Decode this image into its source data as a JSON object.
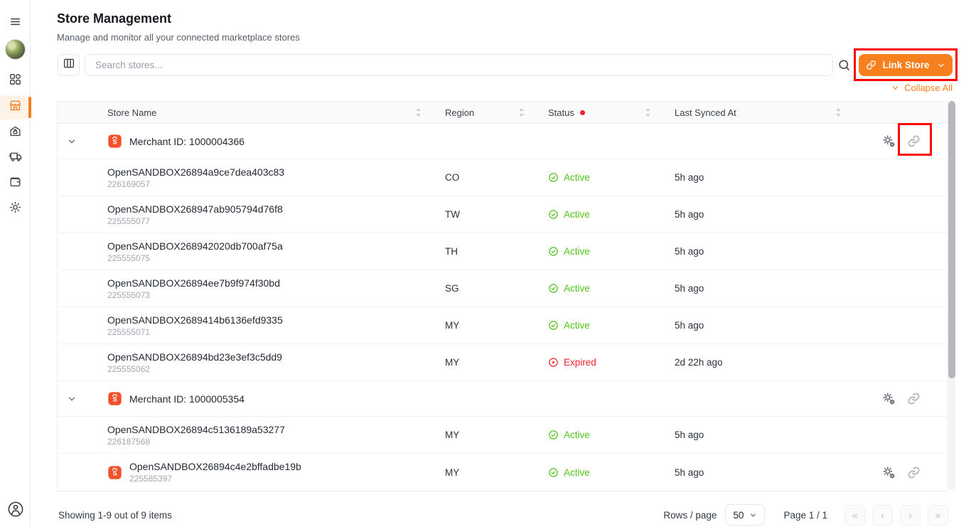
{
  "colors": {
    "accent_orange": "#f7801e",
    "shopee_orange": "#f4502a",
    "active_green": "#52c41a",
    "expired_red": "#f5222d",
    "annotation_red": "#fe0000"
  },
  "sidebar": {
    "items": [
      {
        "name": "menu",
        "icon": "hamburger-icon",
        "active": false
      },
      {
        "name": "profile",
        "icon": "avatar-photo",
        "active": false
      },
      {
        "name": "dashboard",
        "icon": "grid-icon",
        "active": false
      },
      {
        "name": "stores",
        "icon": "storefront-icon",
        "active": true
      },
      {
        "name": "warehouse",
        "icon": "home-lock-icon",
        "active": false
      },
      {
        "name": "logistics",
        "icon": "truck-icon",
        "active": false
      },
      {
        "name": "wallet",
        "icon": "wallet-icon",
        "active": false
      },
      {
        "name": "settings",
        "icon": "gear-icon",
        "active": false
      },
      {
        "name": "account",
        "icon": "person-circle-icon",
        "active": false
      }
    ]
  },
  "header": {
    "title": "Store Management",
    "subtitle": "Manage and monitor all your connected marketplace stores"
  },
  "toolbar": {
    "search_placeholder": "Search stores...",
    "link_store_label": "Link Store",
    "collapse_all_label": "Collapse All"
  },
  "table": {
    "columns": [
      {
        "label": "Store Name",
        "sortable": true
      },
      {
        "label": "Region",
        "sortable": true
      },
      {
        "label": "Status",
        "sortable": true,
        "has_red_dot": true
      },
      {
        "label": "Last Synced At",
        "sortable": true
      }
    ],
    "rows": [
      {
        "type": "group",
        "label": "Merchant ID: 1000004366",
        "actions": true,
        "annotated_unlink": true
      },
      {
        "type": "store",
        "name": "OpenSANDBOX26894a9ce7dea403c83",
        "store_id": "226169057",
        "region": "CO",
        "status": "Active",
        "last_synced": "5h ago"
      },
      {
        "type": "store",
        "name": "OpenSANDBOX268947ab905794d76f8",
        "store_id": "225555077",
        "region": "TW",
        "status": "Active",
        "last_synced": "5h ago"
      },
      {
        "type": "store",
        "name": "OpenSANDBOX268942020db700af75a",
        "store_id": "225555075",
        "region": "TH",
        "status": "Active",
        "last_synced": "5h ago"
      },
      {
        "type": "store",
        "name": "OpenSANDBOX26894ee7b9f974f30bd",
        "store_id": "225555073",
        "region": "SG",
        "status": "Active",
        "last_synced": "5h ago"
      },
      {
        "type": "store",
        "name": "OpenSANDBOX2689414b6136efd9335",
        "store_id": "225555071",
        "region": "MY",
        "status": "Active",
        "last_synced": "5h ago"
      },
      {
        "type": "store",
        "name": "OpenSANDBOX26894bd23e3ef3c5dd9",
        "store_id": "225555062",
        "region": "MY",
        "status": "Expired",
        "last_synced": "2d 22h ago"
      },
      {
        "type": "group",
        "label": "Merchant ID: 1000005354",
        "actions": true
      },
      {
        "type": "store",
        "name": "OpenSANDBOX26894c5136189a53277",
        "store_id": "226187568",
        "region": "MY",
        "status": "Active",
        "last_synced": "5h ago"
      },
      {
        "type": "store",
        "name": "OpenSANDBOX26894c4e2bffadbe19b",
        "store_id": "225585397",
        "region": "MY",
        "status": "Active",
        "last_synced": "5h ago",
        "shopee_icon": true,
        "actions": true
      }
    ]
  },
  "footer": {
    "showing": "Showing 1-9 out of 9 items",
    "rows_per_page_label": "Rows / page",
    "rows_per_page_value": "50",
    "page_indicator": "Page 1 / 1",
    "pagination": [
      "«",
      "‹",
      "›",
      "»"
    ]
  }
}
